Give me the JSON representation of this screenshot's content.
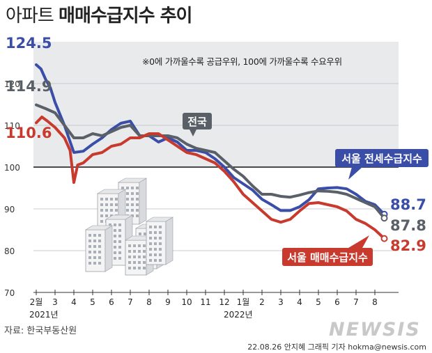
{
  "title": {
    "normal": "아파트",
    "bold": "매매수급지수 추이"
  },
  "note": "※0에 가까울수록 공급우위, 100에 가까울수록 수요우위",
  "source": "자료: 한국부동산원",
  "credit": "22.08.26 안지혜 그래픽 기자 hokma@newsis.com",
  "logo": "NEWSIS",
  "colors": {
    "blue": "#3a4ea8",
    "gray": "#5a6068",
    "red": "#c83a2e",
    "band": "#e9eaec"
  },
  "chart_data": {
    "type": "line",
    "ylim": [
      70,
      130
    ],
    "yticks": [
      70,
      80,
      90,
      100,
      110,
      120
    ],
    "x_tick_labels": [
      "2월",
      "3",
      "4",
      "5",
      "6",
      "7",
      "8",
      "9",
      "10",
      "11",
      "12",
      "1월",
      "2",
      "3",
      "4",
      "5",
      "6",
      "7",
      "8"
    ],
    "x_tick_values": [
      0,
      1,
      2,
      3,
      4,
      5,
      6,
      7,
      8,
      9,
      10,
      11,
      12,
      13,
      14,
      15,
      16,
      17,
      18
    ],
    "year_labels": [
      "2021년",
      "2022년"
    ],
    "series": [
      {
        "name": "서울 전세수급지수",
        "color": "#3a4ea8",
        "start_label": "124.5",
        "end_label": "88.7",
        "x": [
          0,
          0.25,
          0.5,
          0.75,
          1,
          1.5,
          2,
          2.5,
          3,
          3.5,
          4,
          4.5,
          5,
          5.5,
          6,
          6.5,
          7,
          7.5,
          8,
          8.5,
          9,
          9.5,
          10,
          10.5,
          11,
          11.5,
          12,
          12.5,
          13,
          13.5,
          14,
          14.5,
          15,
          15.5,
          16,
          16.5,
          17,
          17.5,
          18,
          18.5
        ],
        "y": [
          124.5,
          123.5,
          121,
          119,
          115.5,
          110,
          103.5,
          103.8,
          105.5,
          107,
          109,
          110.5,
          111,
          107.5,
          107.5,
          106,
          107,
          106,
          104,
          104,
          103.5,
          102,
          100,
          97.5,
          96,
          94.5,
          92.3,
          91,
          89.6,
          89.6,
          90.5,
          92.2,
          94.8,
          95,
          95.1,
          94.8,
          93.5,
          91.8,
          91,
          88.7
        ]
      },
      {
        "name": "전국",
        "color": "#5a6068",
        "start_label": "114.9",
        "end_label": "87.8",
        "x": [
          0,
          0.5,
          1,
          1.5,
          2,
          2.5,
          3,
          3.5,
          4,
          4.5,
          5,
          5.5,
          6,
          6.5,
          7,
          7.5,
          8,
          8.5,
          9,
          9.5,
          10,
          10.5,
          11,
          11.5,
          12,
          12.5,
          13,
          13.5,
          14,
          14.5,
          15,
          15.5,
          16,
          16.5,
          17,
          17.5,
          18,
          18.5
        ],
        "y": [
          114.9,
          114,
          113,
          110,
          107,
          107,
          108,
          107.5,
          108.5,
          109.5,
          110,
          107.5,
          107.5,
          107.5,
          107.5,
          107,
          105.5,
          104.5,
          104,
          103.5,
          101.5,
          99.5,
          97.8,
          95.5,
          93.5,
          93.5,
          93,
          92.8,
          93.3,
          93.9,
          94.3,
          94.2,
          94,
          93.5,
          92.5,
          91.5,
          90.5,
          87.8
        ]
      },
      {
        "name": "서울 매매수급지수",
        "color": "#c83a2e",
        "start_label": "110.6",
        "end_label": "82.9",
        "x": [
          0,
          0.3,
          0.6,
          1,
          1.5,
          1.8,
          2,
          2.2,
          2.5,
          3,
          3.5,
          4,
          4.5,
          5,
          5.5,
          6,
          6.5,
          7,
          7.5,
          8,
          8.5,
          9,
          9.5,
          10,
          10.5,
          11,
          11.5,
          12,
          12.5,
          13,
          13.5,
          14,
          14.5,
          15,
          15.5,
          16,
          16.5,
          17,
          17.5,
          18,
          18.5
        ],
        "y": [
          110.6,
          112,
          111,
          109.5,
          107,
          104,
          96.3,
          100.5,
          101,
          103,
          103.5,
          105,
          105.5,
          107,
          107,
          108,
          108,
          106.5,
          105,
          103.5,
          103,
          102,
          101,
          99,
          96.5,
          93.5,
          91.5,
          89.5,
          87.5,
          86.8,
          87.5,
          89.5,
          91.3,
          91.5,
          91,
          90.5,
          89.5,
          87.5,
          86.5,
          85,
          82.9
        ]
      }
    ]
  },
  "buildings_label": ""
}
